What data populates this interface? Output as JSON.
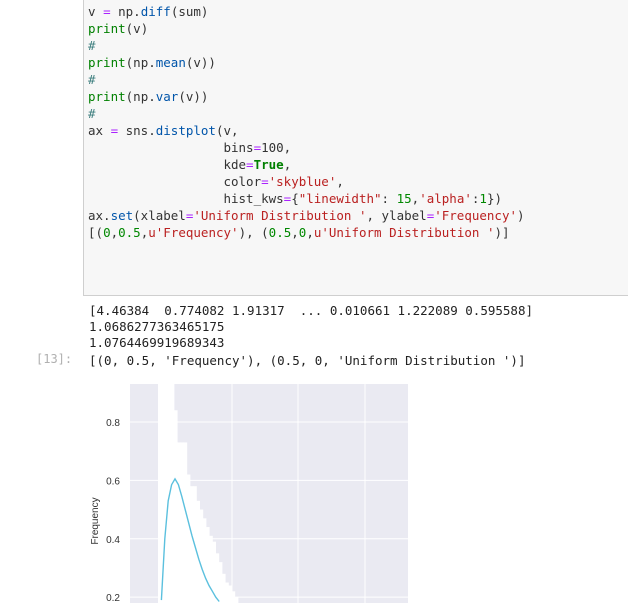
{
  "input_cell": {
    "lines": [
      "v = np.diff(sum)",
      "print(v)",
      "#",
      "print(np.mean(v))",
      "#",
      "print(np.var(v))",
      "#",
      "ax = sns.distplot(v,",
      "                  bins=100,",
      "                  kde=True,",
      "                  color='skyblue',",
      "                  hist_kws={\"linewidth\": 15,'alpha':1})",
      "ax.set(xlabel='Uniform Distribution ', ylabel='Frequency')",
      "[(0,0.5,u'Frequency'), (0.5,0,u'Uniform Distribution ')]"
    ]
  },
  "output": {
    "prompt": "[13]:",
    "stdout": [
      "[4.46384  0.774082 1.91317  ... 0.010661 1.222089 0.595588]",
      "1.0686277363465175",
      "1.0764469919689343"
    ],
    "result": "[(0, 0.5, 'Frequency'), (0.5, 0, 'Uniform Distribution ')]"
  },
  "plot": {
    "ylabel": "Frequency",
    "yticks": [
      "0.8",
      "0.6",
      "0.4",
      "0.2"
    ],
    "colors": {
      "background": "#eaeaf2",
      "bars": "#ffffff",
      "kde": "#5bc0de",
      "grid": "#ffffff"
    }
  },
  "chart_data": {
    "type": "bar",
    "ylabel": "Frequency",
    "xlabel": "",
    "yticks": [
      0.2,
      0.4,
      0.6,
      0.8
    ],
    "ylim": [
      0.18,
      0.93
    ],
    "histogram_heights": [
      0.93,
      0.93,
      0.93,
      0.93,
      0.93,
      0.84,
      0.73,
      0.73,
      0.73,
      0.62,
      0.58,
      0.58,
      0.53,
      0.5,
      0.47,
      0.44,
      0.41,
      0.39,
      0.35,
      0.32,
      0.28,
      0.25,
      0.24,
      0.22,
      0.2
    ],
    "kde": {
      "x_fraction": [
        0.05,
        0.1,
        0.15,
        0.2,
        0.25,
        0.3,
        0.35,
        0.4,
        0.45,
        0.5,
        0.55,
        0.6,
        0.65,
        0.7,
        0.75,
        0.8,
        0.85,
        0.9
      ],
      "y": [
        0.19,
        0.4,
        0.53,
        0.585,
        0.605,
        0.585,
        0.545,
        0.5,
        0.455,
        0.41,
        0.37,
        0.33,
        0.295,
        0.265,
        0.24,
        0.22,
        0.2,
        0.185
      ]
    }
  }
}
